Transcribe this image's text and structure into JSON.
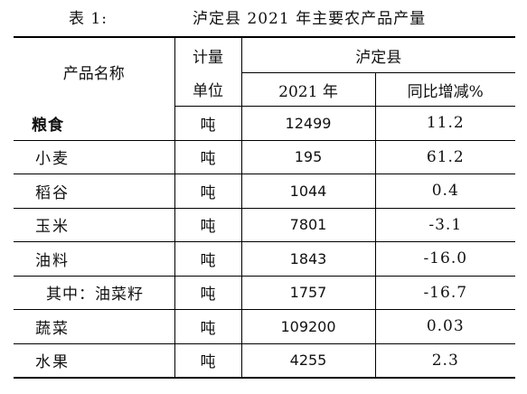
{
  "caption": {
    "label": "表 1:",
    "title": "泸定县 2021 年主要农产品产量"
  },
  "header": {
    "product_name": "产品名称",
    "unit_line1": "计量",
    "unit_line2": "单位",
    "region": "泸定县",
    "year": "2021 年",
    "change": "同比增减%"
  },
  "rows": [
    {
      "item": "粮食",
      "unit": "吨",
      "value": "12499",
      "change": "11.2"
    },
    {
      "item": "小麦",
      "unit": "吨",
      "value": "195",
      "change": "61.2"
    },
    {
      "item": "稻谷",
      "unit": "吨",
      "value": "1044",
      "change": "0.4"
    },
    {
      "item": "玉米",
      "unit": "吨",
      "value": "7801",
      "change": "-3.1"
    },
    {
      "item": "油料",
      "unit": "吨",
      "value": "1843",
      "change": "-16.0"
    },
    {
      "item": "其中：油菜籽",
      "unit": "吨",
      "value": "1757",
      "change": "-16.7"
    },
    {
      "item": "蔬菜",
      "unit": "吨",
      "value": "109200",
      "change": "0.03"
    },
    {
      "item": "水果",
      "unit": "吨",
      "value": "4255",
      "change": "2.3"
    }
  ]
}
